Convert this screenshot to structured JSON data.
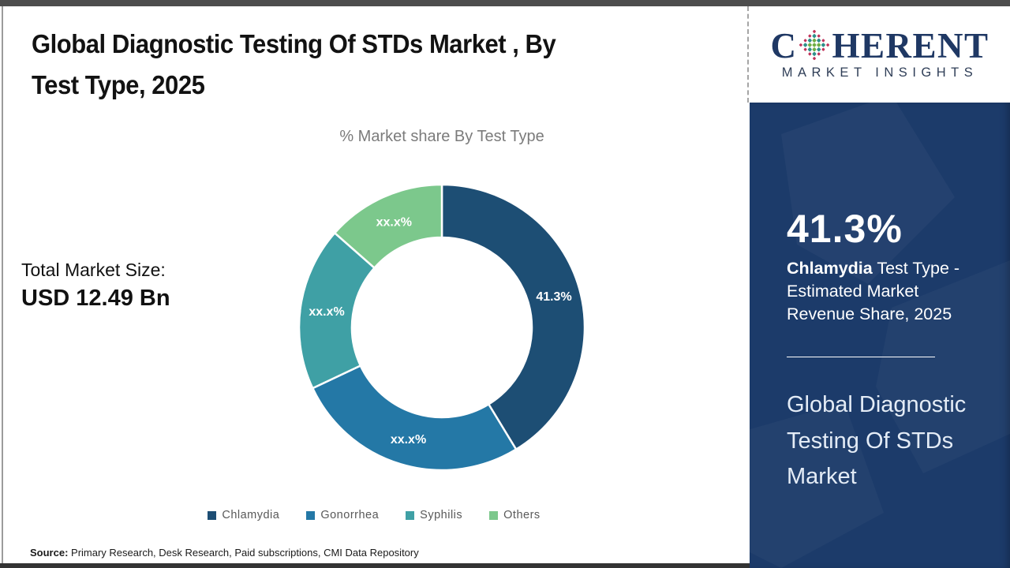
{
  "header": {
    "title_line1": "Global Diagnostic Testing Of STDs Market , By",
    "title_line2": "Test Type, 2025"
  },
  "left_stats": {
    "total_market_label": "Total Market Size:",
    "total_market_value": "USD 12.49 Bn"
  },
  "source": {
    "prefix": "Source:",
    "text": "Primary Research, Desk Research, Paid subscriptions, CMI Data Repository"
  },
  "chart_data": {
    "type": "pie",
    "subtype": "donut",
    "title": "% Market share By Test Type",
    "categories": [
      "Chlamydia",
      "Gonorrhea",
      "Syphilis",
      "Others"
    ],
    "values": [
      41.3,
      26.7,
      18.5,
      13.5
    ],
    "slice_labels": [
      "41.3%",
      "xx.x%",
      "xx.x%",
      "xx.x%"
    ],
    "colors": [
      "#1d4e74",
      "#2478a6",
      "#3fa0a5",
      "#7cc88c"
    ],
    "start_angle_deg": 0,
    "direction": "clockwise",
    "inner_radius_ratio": 0.63,
    "legend_position": "bottom",
    "legend_text_color": "#595959",
    "label_color": "#ffffff"
  },
  "sidebar": {
    "logo_pre": "C",
    "logo_post": "HERENT",
    "logo_subtitle": "MARKET INSIGHTS",
    "stat_value": "41.3%",
    "stat_desc_bold": "Chlamydia",
    "stat_desc_rest": "Test Type - Estimated Market Revenue Share, 2025",
    "panel_title": "Global Diagnostic Testing Of STDs Market"
  },
  "colors": {
    "panel_navy": "#1c3b6a",
    "logo_navy": "#1f3864",
    "sphere_green": "#6fae44",
    "sphere_teal": "#2e8f8a",
    "sphere_red": "#c1335a"
  }
}
